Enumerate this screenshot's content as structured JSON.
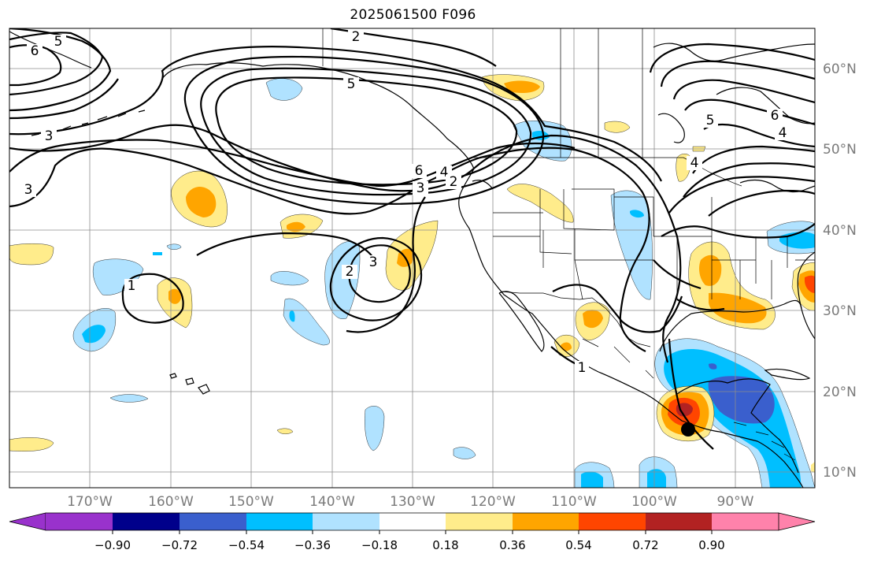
{
  "title": "2025061500 F096",
  "map": {
    "lat_labels": [
      "60°N",
      "50°N",
      "40°N",
      "30°N",
      "20°N",
      "10°N"
    ],
    "lon_labels": [
      "170°W",
      "160°W",
      "150°W",
      "140°W",
      "130°W",
      "120°W",
      "110°W",
      "100°W",
      "90°W"
    ],
    "contour_labels": [
      "2",
      "5",
      "6",
      "5",
      "3",
      "6",
      "4",
      "2",
      "3",
      "6",
      "5",
      "4",
      "4",
      "2",
      "3",
      "1",
      "1"
    ],
    "marker": {
      "name": "storm-center-dot",
      "color": "#000000"
    }
  },
  "colorbar": {
    "ticks": [
      "−0.90",
      "−0.72",
      "−0.54",
      "−0.36",
      "−0.18",
      "0.18",
      "0.36",
      "0.54",
      "0.72",
      "0.90"
    ],
    "colors": [
      "#9932cc",
      "#00008b",
      "#3a5fcd",
      "#00bfff",
      "#b0e2ff",
      "#ffffff",
      "#ffec8b",
      "#ffa500",
      "#ff4500",
      "#b22222",
      "#ff82ab"
    ]
  }
}
